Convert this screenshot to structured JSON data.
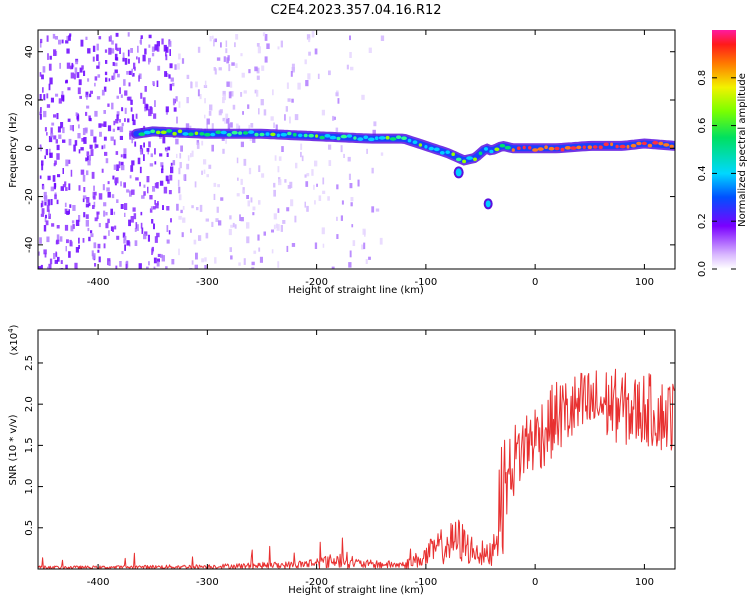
{
  "title": "C2E4.2023.357.04.16.R12",
  "colors": {
    "snr_line": "#e83030",
    "spectral_core": "#e8305a",
    "spectral_mid": "#00d0ff",
    "spectral_low": "#5a10e0",
    "spectral_faint": "#c9a8f5"
  },
  "chart_data": [
    {
      "type": "heatmap",
      "name": "spectrogram",
      "xlabel": "Height of straight line (km)",
      "ylabel": "Frequency (Hz)",
      "xlim": [
        -455,
        128
      ],
      "ylim": [
        -50,
        49
      ],
      "xticks": [
        -400,
        -300,
        -200,
        -100,
        0,
        100
      ],
      "yticks": [
        -40,
        -20,
        0,
        20,
        40
      ],
      "ridge": {
        "x": [
          -365,
          -350,
          -300,
          -250,
          -200,
          -150,
          -120,
          -100,
          -80,
          -65,
          -55,
          -45,
          -40,
          -30,
          -20,
          -10,
          0,
          20,
          50,
          80,
          100,
          128
        ],
        "y": [
          6,
          7,
          6,
          6,
          5,
          4,
          4,
          1,
          -2,
          -5,
          -4,
          0,
          -1,
          1,
          0,
          0,
          0,
          0,
          1,
          1,
          2,
          1
        ]
      },
      "colorbar": {
        "label": "Normalized spectral amplitude",
        "ticks": [
          0.0,
          0.2,
          0.4,
          0.6,
          0.8
        ],
        "range": [
          0,
          1
        ]
      }
    },
    {
      "type": "line",
      "name": "snr",
      "xlabel": "Height of straight line (km)",
      "ylabel": "SNR (10 * v/v)",
      "scale_label": "(x10",
      "scale_exp": "4",
      "scale_close": ")",
      "xlim": [
        -455,
        128
      ],
      "ylim": [
        0,
        2.9
      ],
      "xticks": [
        -400,
        -300,
        -200,
        -100,
        0,
        100
      ],
      "yticks": [
        0.5,
        1.0,
        1.5,
        2.0,
        2.5
      ],
      "x": [
        -455,
        -400,
        -300,
        -220,
        -190,
        -175,
        -160,
        -120,
        -100,
        -90,
        -80,
        -70,
        -60,
        -50,
        -45,
        -40,
        -35,
        -30,
        -25,
        -20,
        -15,
        -10,
        0,
        10,
        20,
        30,
        40,
        50,
        60,
        70,
        80,
        90,
        100,
        110,
        120,
        128
      ],
      "y": [
        0.02,
        0.02,
        0.03,
        0.05,
        0.09,
        0.12,
        0.06,
        0.05,
        0.15,
        0.25,
        0.3,
        0.35,
        0.25,
        0.2,
        0.15,
        0.2,
        0.5,
        0.9,
        1.1,
        1.3,
        1.4,
        1.5,
        1.6,
        1.7,
        1.85,
        1.9,
        1.95,
        2.0,
        2.0,
        2.0,
        1.95,
        1.9,
        1.95,
        1.9,
        1.85,
        1.9
      ]
    }
  ]
}
